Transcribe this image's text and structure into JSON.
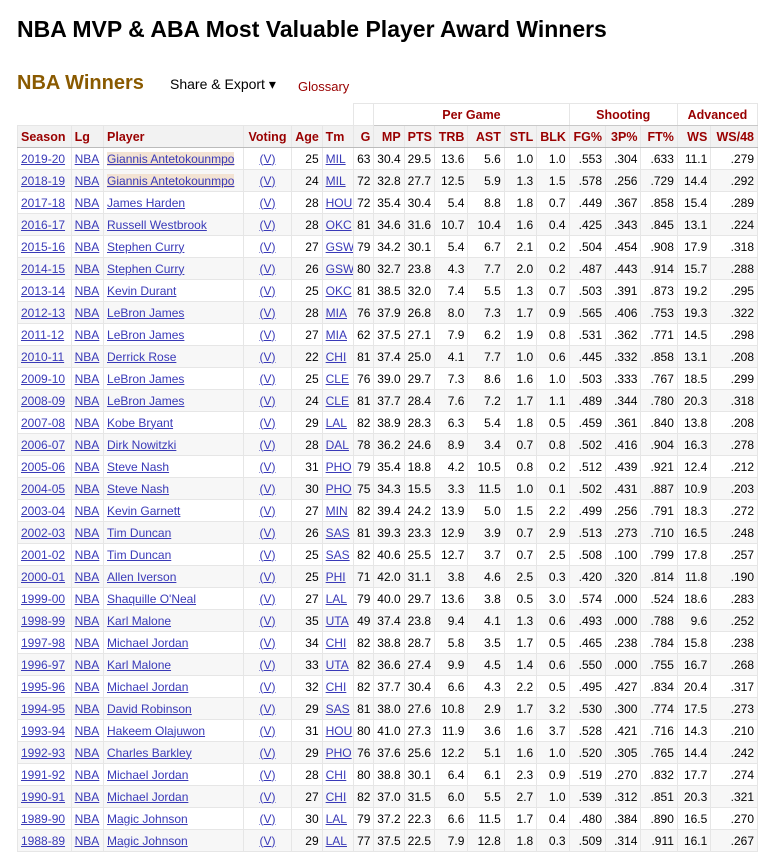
{
  "page": {
    "title": "NBA MVP & ABA Most Valuable Player Award Winners"
  },
  "section": {
    "title": "NBA Winners",
    "share_export": "Share & Export ▾",
    "glossary": "Glossary"
  },
  "table": {
    "over_headers": {
      "per_game": "Per Game",
      "shooting": "Shooting",
      "advanced": "Advanced"
    },
    "columns": [
      "Season",
      "Lg",
      "Player",
      "Voting",
      "Age",
      "Tm",
      "G",
      "MP",
      "PTS",
      "TRB",
      "AST",
      "STL",
      "BLK",
      "FG%",
      "3P%",
      "FT%",
      "WS",
      "WS/48"
    ],
    "rows": [
      [
        "2019-20",
        "NBA",
        "Giannis Antetokounmpo",
        "(V)",
        "25",
        "MIL",
        "63",
        "30.4",
        "29.5",
        "13.6",
        "5.6",
        "1.0",
        "1.0",
        ".553",
        ".304",
        ".633",
        "11.1",
        ".279"
      ],
      [
        "2018-19",
        "NBA",
        "Giannis Antetokounmpo",
        "(V)",
        "24",
        "MIL",
        "72",
        "32.8",
        "27.7",
        "12.5",
        "5.9",
        "1.3",
        "1.5",
        ".578",
        ".256",
        ".729",
        "14.4",
        ".292"
      ],
      [
        "2017-18",
        "NBA",
        "James Harden",
        "(V)",
        "28",
        "HOU",
        "72",
        "35.4",
        "30.4",
        "5.4",
        "8.8",
        "1.8",
        "0.7",
        ".449",
        ".367",
        ".858",
        "15.4",
        ".289"
      ],
      [
        "2016-17",
        "NBA",
        "Russell Westbrook",
        "(V)",
        "28",
        "OKC",
        "81",
        "34.6",
        "31.6",
        "10.7",
        "10.4",
        "1.6",
        "0.4",
        ".425",
        ".343",
        ".845",
        "13.1",
        ".224"
      ],
      [
        "2015-16",
        "NBA",
        "Stephen Curry",
        "(V)",
        "27",
        "GSW",
        "79",
        "34.2",
        "30.1",
        "5.4",
        "6.7",
        "2.1",
        "0.2",
        ".504",
        ".454",
        ".908",
        "17.9",
        ".318"
      ],
      [
        "2014-15",
        "NBA",
        "Stephen Curry",
        "(V)",
        "26",
        "GSW",
        "80",
        "32.7",
        "23.8",
        "4.3",
        "7.7",
        "2.0",
        "0.2",
        ".487",
        ".443",
        ".914",
        "15.7",
        ".288"
      ],
      [
        "2013-14",
        "NBA",
        "Kevin Durant",
        "(V)",
        "25",
        "OKC",
        "81",
        "38.5",
        "32.0",
        "7.4",
        "5.5",
        "1.3",
        "0.7",
        ".503",
        ".391",
        ".873",
        "19.2",
        ".295"
      ],
      [
        "2012-13",
        "NBA",
        "LeBron James",
        "(V)",
        "28",
        "MIA",
        "76",
        "37.9",
        "26.8",
        "8.0",
        "7.3",
        "1.7",
        "0.9",
        ".565",
        ".406",
        ".753",
        "19.3",
        ".322"
      ],
      [
        "2011-12",
        "NBA",
        "LeBron James",
        "(V)",
        "27",
        "MIA",
        "62",
        "37.5",
        "27.1",
        "7.9",
        "6.2",
        "1.9",
        "0.8",
        ".531",
        ".362",
        ".771",
        "14.5",
        ".298"
      ],
      [
        "2010-11",
        "NBA",
        "Derrick Rose",
        "(V)",
        "22",
        "CHI",
        "81",
        "37.4",
        "25.0",
        "4.1",
        "7.7",
        "1.0",
        "0.6",
        ".445",
        ".332",
        ".858",
        "13.1",
        ".208"
      ],
      [
        "2009-10",
        "NBA",
        "LeBron James",
        "(V)",
        "25",
        "CLE",
        "76",
        "39.0",
        "29.7",
        "7.3",
        "8.6",
        "1.6",
        "1.0",
        ".503",
        ".333",
        ".767",
        "18.5",
        ".299"
      ],
      [
        "2008-09",
        "NBA",
        "LeBron James",
        "(V)",
        "24",
        "CLE",
        "81",
        "37.7",
        "28.4",
        "7.6",
        "7.2",
        "1.7",
        "1.1",
        ".489",
        ".344",
        ".780",
        "20.3",
        ".318"
      ],
      [
        "2007-08",
        "NBA",
        "Kobe Bryant",
        "(V)",
        "29",
        "LAL",
        "82",
        "38.9",
        "28.3",
        "6.3",
        "5.4",
        "1.8",
        "0.5",
        ".459",
        ".361",
        ".840",
        "13.8",
        ".208"
      ],
      [
        "2006-07",
        "NBA",
        "Dirk Nowitzki",
        "(V)",
        "28",
        "DAL",
        "78",
        "36.2",
        "24.6",
        "8.9",
        "3.4",
        "0.7",
        "0.8",
        ".502",
        ".416",
        ".904",
        "16.3",
        ".278"
      ],
      [
        "2005-06",
        "NBA",
        "Steve Nash",
        "(V)",
        "31",
        "PHO",
        "79",
        "35.4",
        "18.8",
        "4.2",
        "10.5",
        "0.8",
        "0.2",
        ".512",
        ".439",
        ".921",
        "12.4",
        ".212"
      ],
      [
        "2004-05",
        "NBA",
        "Steve Nash",
        "(V)",
        "30",
        "PHO",
        "75",
        "34.3",
        "15.5",
        "3.3",
        "11.5",
        "1.0",
        "0.1",
        ".502",
        ".431",
        ".887",
        "10.9",
        ".203"
      ],
      [
        "2003-04",
        "NBA",
        "Kevin Garnett",
        "(V)",
        "27",
        "MIN",
        "82",
        "39.4",
        "24.2",
        "13.9",
        "5.0",
        "1.5",
        "2.2",
        ".499",
        ".256",
        ".791",
        "18.3",
        ".272"
      ],
      [
        "2002-03",
        "NBA",
        "Tim Duncan",
        "(V)",
        "26",
        "SAS",
        "81",
        "39.3",
        "23.3",
        "12.9",
        "3.9",
        "0.7",
        "2.9",
        ".513",
        ".273",
        ".710",
        "16.5",
        ".248"
      ],
      [
        "2001-02",
        "NBA",
        "Tim Duncan",
        "(V)",
        "25",
        "SAS",
        "82",
        "40.6",
        "25.5",
        "12.7",
        "3.7",
        "0.7",
        "2.5",
        ".508",
        ".100",
        ".799",
        "17.8",
        ".257"
      ],
      [
        "2000-01",
        "NBA",
        "Allen Iverson",
        "(V)",
        "25",
        "PHI",
        "71",
        "42.0",
        "31.1",
        "3.8",
        "4.6",
        "2.5",
        "0.3",
        ".420",
        ".320",
        ".814",
        "11.8",
        ".190"
      ],
      [
        "1999-00",
        "NBA",
        "Shaquille O'Neal",
        "(V)",
        "27",
        "LAL",
        "79",
        "40.0",
        "29.7",
        "13.6",
        "3.8",
        "0.5",
        "3.0",
        ".574",
        ".000",
        ".524",
        "18.6",
        ".283"
      ],
      [
        "1998-99",
        "NBA",
        "Karl Malone",
        "(V)",
        "35",
        "UTA",
        "49",
        "37.4",
        "23.8",
        "9.4",
        "4.1",
        "1.3",
        "0.6",
        ".493",
        ".000",
        ".788",
        "9.6",
        ".252"
      ],
      [
        "1997-98",
        "NBA",
        "Michael Jordan",
        "(V)",
        "34",
        "CHI",
        "82",
        "38.8",
        "28.7",
        "5.8",
        "3.5",
        "1.7",
        "0.5",
        ".465",
        ".238",
        ".784",
        "15.8",
        ".238"
      ],
      [
        "1996-97",
        "NBA",
        "Karl Malone",
        "(V)",
        "33",
        "UTA",
        "82",
        "36.6",
        "27.4",
        "9.9",
        "4.5",
        "1.4",
        "0.6",
        ".550",
        ".000",
        ".755",
        "16.7",
        ".268"
      ],
      [
        "1995-96",
        "NBA",
        "Michael Jordan",
        "(V)",
        "32",
        "CHI",
        "82",
        "37.7",
        "30.4",
        "6.6",
        "4.3",
        "2.2",
        "0.5",
        ".495",
        ".427",
        ".834",
        "20.4",
        ".317"
      ],
      [
        "1994-95",
        "NBA",
        "David Robinson",
        "(V)",
        "29",
        "SAS",
        "81",
        "38.0",
        "27.6",
        "10.8",
        "2.9",
        "1.7",
        "3.2",
        ".530",
        ".300",
        ".774",
        "17.5",
        ".273"
      ],
      [
        "1993-94",
        "NBA",
        "Hakeem Olajuwon",
        "(V)",
        "31",
        "HOU",
        "80",
        "41.0",
        "27.3",
        "11.9",
        "3.6",
        "1.6",
        "3.7",
        ".528",
        ".421",
        ".716",
        "14.3",
        ".210"
      ],
      [
        "1992-93",
        "NBA",
        "Charles Barkley",
        "(V)",
        "29",
        "PHO",
        "76",
        "37.6",
        "25.6",
        "12.2",
        "5.1",
        "1.6",
        "1.0",
        ".520",
        ".305",
        ".765",
        "14.4",
        ".242"
      ],
      [
        "1991-92",
        "NBA",
        "Michael Jordan",
        "(V)",
        "28",
        "CHI",
        "80",
        "38.8",
        "30.1",
        "6.4",
        "6.1",
        "2.3",
        "0.9",
        ".519",
        ".270",
        ".832",
        "17.7",
        ".274"
      ],
      [
        "1990-91",
        "NBA",
        "Michael Jordan",
        "(V)",
        "27",
        "CHI",
        "82",
        "37.0",
        "31.5",
        "6.0",
        "5.5",
        "2.7",
        "1.0",
        ".539",
        ".312",
        ".851",
        "20.3",
        ".321"
      ],
      [
        "1989-90",
        "NBA",
        "Magic Johnson",
        "(V)",
        "30",
        "LAL",
        "79",
        "37.2",
        "22.3",
        "6.6",
        "11.5",
        "1.7",
        "0.4",
        ".480",
        ".384",
        ".890",
        "16.5",
        ".270"
      ],
      [
        "1988-89",
        "NBA",
        "Magic Johnson",
        "(V)",
        "29",
        "LAL",
        "77",
        "37.5",
        "22.5",
        "7.9",
        "12.8",
        "1.8",
        "0.3",
        ".509",
        ".314",
        ".911",
        "16.1",
        ".267"
      ]
    ]
  },
  "colors": {
    "header_text": "#990000",
    "section_title": "#8a5a00",
    "link": "#3a3ab8",
    "highlight": "#f3e3d3"
  }
}
